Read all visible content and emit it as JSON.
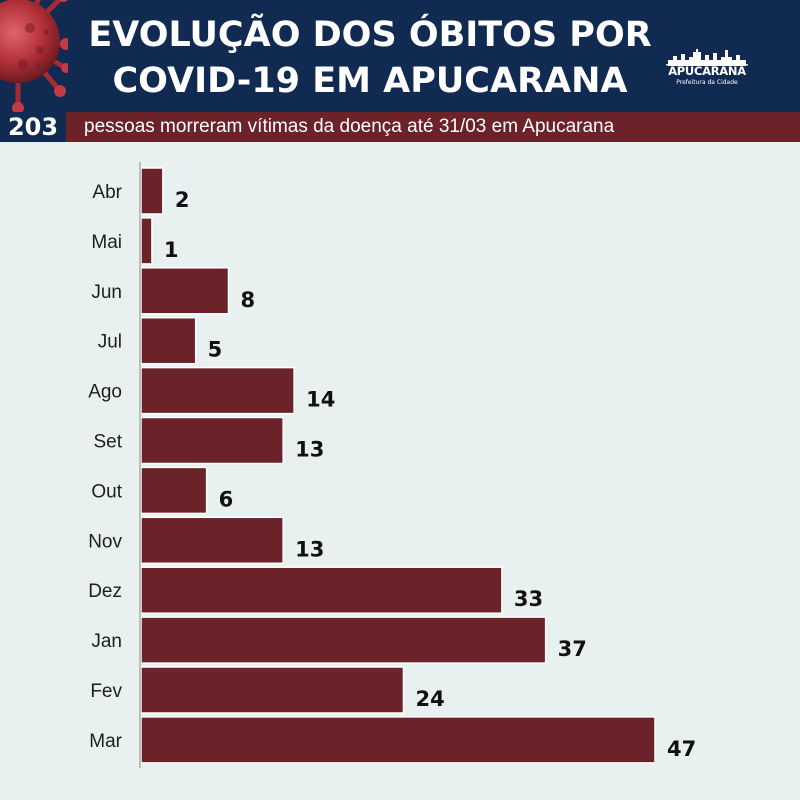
{
  "header": {
    "title_line1": "EVOLUÇÃO DOS ÓBITOS POR",
    "title_line2": "COVID-19 EM APUCARANA",
    "logo_name": "APUCARANA",
    "logo_sub": "Prefeitura da Cidade",
    "virus_image": "coronavirus-icon"
  },
  "summary": {
    "total": "203",
    "text": "pessoas morreram vítimas da doença até 31/03 em Apucarana"
  },
  "colors": {
    "header_bg": "#112a52",
    "accent": "#6b2329",
    "bar": "#6b2329",
    "background": "#e8f1f0"
  },
  "chart_data": {
    "type": "bar",
    "orientation": "horizontal",
    "categories": [
      "Abr",
      "Mai",
      "Jun",
      "Jul",
      "Ago",
      "Set",
      "Out",
      "Nov",
      "Dez",
      "Jan",
      "Fev",
      "Mar"
    ],
    "values": [
      2,
      1,
      8,
      5,
      14,
      13,
      6,
      13,
      33,
      37,
      24,
      47
    ],
    "title": "",
    "xlabel": "",
    "ylabel": "",
    "xlim": [
      0,
      47
    ],
    "grid": false,
    "legend": "none"
  }
}
